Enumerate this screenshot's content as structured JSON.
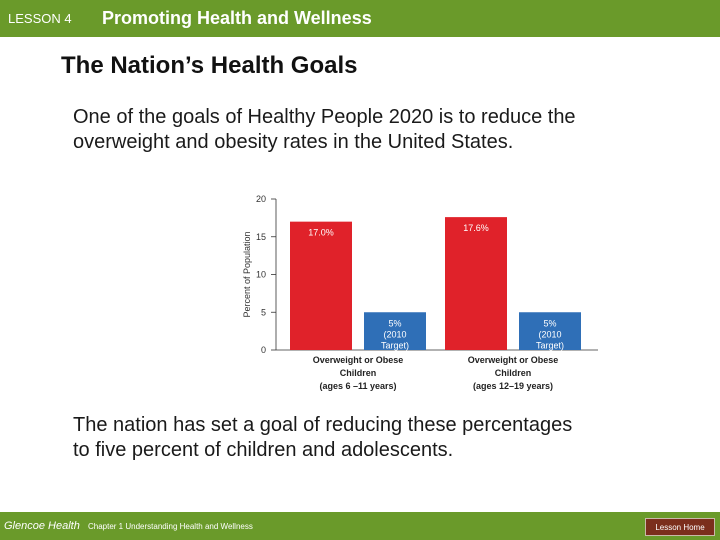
{
  "header": {
    "lesson": "LESSON 4",
    "topic": "Promoting Health and Wellness"
  },
  "slide": {
    "title": "The Nation’s Health Goals",
    "paragraph1": "One of the goals of Healthy People 2020 is to reduce the overweight and obesity rates in the United States.",
    "paragraph2": "The nation has set a goal of reducing these percentages to five percent of children and adolescents."
  },
  "chart_data": {
    "type": "bar",
    "ylabel": "Percent of Population",
    "ylim": [
      0,
      20
    ],
    "yticks": [
      0,
      5,
      10,
      15,
      20
    ],
    "colors": {
      "current": "#e0222a",
      "target": "#2f6fb7"
    },
    "groups": [
      {
        "label_lines": [
          "Overweight or Obese",
          "Children",
          "(ages 6 –11 years)"
        ],
        "bars": [
          {
            "value": 17.0,
            "label_lines": [
              "17.0%"
            ],
            "color": "#e0222a"
          },
          {
            "value": 5,
            "label_lines": [
              "5%",
              "(2010",
              "Target)"
            ],
            "color": "#2f6fb7"
          }
        ]
      },
      {
        "label_lines": [
          "Overweight or Obese",
          "Children",
          "(ages 12–19 years)"
        ],
        "bars": [
          {
            "value": 17.6,
            "label_lines": [
              "17.6%"
            ],
            "color": "#e0222a"
          },
          {
            "value": 5,
            "label_lines": [
              "5%",
              "(2010",
              "Target)"
            ],
            "color": "#2f6fb7"
          }
        ]
      }
    ]
  },
  "footer": {
    "book": "Glencoe Health",
    "chapter": "Chapter 1  Understanding Health and Wellness",
    "home_label": "Lesson Home"
  }
}
